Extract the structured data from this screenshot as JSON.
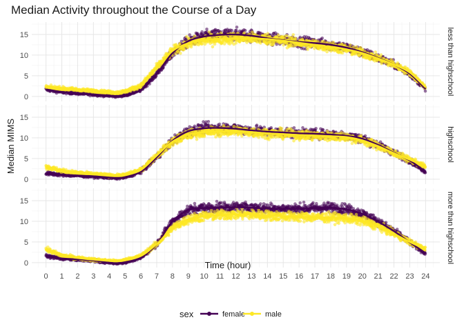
{
  "chart_data": {
    "type": "scatter",
    "title": "Median Activity throughout the Course of a Day",
    "xlabel": "Time (hour)",
    "ylabel": "Median MIMS",
    "xlim": [
      -0.9,
      24.9
    ],
    "ylim": [
      -1.2,
      18
    ],
    "x_ticks": [
      "0",
      "1",
      "2",
      "3",
      "4",
      "5",
      "6",
      "7",
      "8",
      "9",
      "10",
      "11",
      "12",
      "13",
      "14",
      "15",
      "16",
      "17",
      "18",
      "19",
      "20",
      "21",
      "22",
      "23",
      "24"
    ],
    "y_ticks": [
      "0",
      "5",
      "10",
      "15"
    ],
    "grid": true,
    "legend": {
      "title": "sex",
      "position": "bottom",
      "entries": [
        {
          "name": "female",
          "color": "#440154"
        },
        {
          "name": "male",
          "color": "#FDE725"
        }
      ]
    },
    "facet_by": "education",
    "panels": [
      {
        "label": "less than highschool",
        "series": [
          {
            "name": "female",
            "color": "#440154",
            "x": [
              0,
              1,
              2,
              3,
              4,
              4.5,
              5,
              6,
              7,
              8,
              9,
              10,
              11,
              12,
              13,
              14,
              15,
              16,
              17,
              18,
              19,
              20,
              21,
              22,
              23,
              24
            ],
            "y": [
              1.7,
              1.1,
              0.8,
              0.5,
              0.2,
              0.1,
              0.3,
              1.6,
              5.5,
              10.5,
              13.4,
              14.5,
              14.9,
              15,
              14.7,
              14.1,
              13.6,
              13.2,
              12.9,
              12.5,
              11.8,
              10.7,
              9.3,
              7.7,
              5.5,
              1.8
            ]
          },
          {
            "name": "male",
            "color": "#FDE725",
            "x": [
              0,
              1,
              2,
              3,
              4,
              4.5,
              5,
              6,
              7,
              8,
              9,
              10,
              11,
              12,
              13,
              14,
              15,
              16,
              17,
              18,
              19,
              20,
              21,
              22,
              23,
              24
            ],
            "y": [
              2.2,
              1.9,
              1.6,
              1.3,
              1,
              0.9,
              1.2,
              2.6,
              7,
              11,
              12.9,
              13.6,
              14,
              14.1,
              14.1,
              13.9,
              13.5,
              13,
              12.5,
              12,
              11.4,
              10.5,
              9.2,
              7.7,
              5.8,
              2.2
            ]
          }
        ]
      },
      {
        "label": "highschool",
        "series": [
          {
            "name": "female",
            "color": "#440154",
            "x": [
              0,
              1,
              2,
              3,
              4,
              4.5,
              5,
              6,
              7,
              8,
              9,
              10,
              11,
              12,
              13,
              14,
              15,
              16,
              17,
              18,
              19,
              20,
              21,
              22,
              23,
              24
            ],
            "y": [
              1.4,
              1.1,
              0.9,
              0.7,
              0.4,
              0.3,
              0.5,
              1.8,
              5.3,
              9.3,
              11.6,
              12.3,
              12.4,
              12.2,
              11.8,
              11.5,
              11.3,
              11.1,
              11,
              10.8,
              10.5,
              9.8,
              8.3,
              6.4,
              4.5,
              1.8
            ]
          },
          {
            "name": "male",
            "color": "#FDE725",
            "x": [
              0,
              1,
              2,
              3,
              4,
              4.5,
              5,
              6,
              7,
              8,
              9,
              10,
              11,
              12,
              13,
              14,
              15,
              16,
              17,
              18,
              19,
              20,
              21,
              22,
              23,
              24
            ],
            "y": [
              3,
              2,
              1.5,
              1.2,
              0.9,
              0.8,
              1,
              2.2,
              5.7,
              9.1,
              10.8,
              11.4,
              11.6,
              11.6,
              11.4,
              11.1,
              10.9,
              10.7,
              10.5,
              10.4,
              10.2,
              9.4,
              8,
              6.3,
              4.7,
              3
            ]
          }
        ]
      },
      {
        "label": "more than highschool",
        "series": [
          {
            "name": "female",
            "color": "#440154",
            "x": [
              0,
              1,
              2,
              3,
              4,
              4.5,
              5,
              6,
              7,
              8,
              9,
              10,
              11,
              12,
              13,
              14,
              15,
              16,
              17,
              18,
              19,
              20,
              21,
              22,
              23,
              24
            ],
            "y": [
              1.6,
              1,
              0.8,
              0.5,
              0,
              -0.1,
              0.1,
              1.2,
              4.5,
              10,
              12.7,
              13.2,
              13.3,
              13.4,
              13.3,
              13.1,
              13,
              13,
              13.2,
              13.3,
              12.9,
              11.8,
              9.9,
              7.6,
              4.9,
              2.3
            ]
          },
          {
            "name": "male",
            "color": "#FDE725",
            "x": [
              0,
              1,
              2,
              3,
              4,
              4.5,
              5,
              6,
              7,
              8,
              9,
              10,
              11,
              12,
              13,
              14,
              15,
              16,
              17,
              18,
              19,
              20,
              21,
              22,
              23,
              24
            ],
            "y": [
              3.2,
              1.7,
              1.1,
              0.7,
              0.4,
              0.3,
              0.6,
              1.6,
              4.5,
              8.4,
              10.5,
              11.2,
              11.5,
              11.7,
              11.6,
              11.4,
              11.2,
              11.1,
              11,
              10.9,
              10.7,
              10.1,
              8.8,
              7,
              5,
              3.2
            ]
          }
        ]
      }
    ]
  }
}
